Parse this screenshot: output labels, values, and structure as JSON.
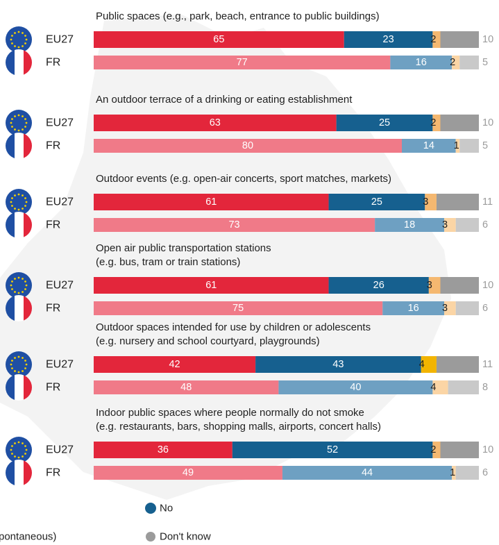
{
  "chart_data": {
    "type": "bar",
    "orientation": "horizontal",
    "stacked": true,
    "xlim": [
      0,
      100
    ],
    "legend": [
      {
        "key": "no",
        "label": "No"
      },
      {
        "key": "dk",
        "label": "Don't know"
      },
      {
        "key": "spont",
        "label": "pontaneous)"
      }
    ],
    "categories": [
      {
        "title": [
          "Public spaces (e.g., park, beach, entrance to public buildings)"
        ],
        "rows": [
          {
            "label": "EU27",
            "flag": "eu-flag-icon",
            "values": [
              65,
              23,
              2,
              10
            ]
          },
          {
            "label": "FR",
            "flag": "fr-flag-icon",
            "values": [
              77,
              16,
              2,
              5
            ]
          }
        ]
      },
      {
        "title": [
          "An outdoor terrace of a drinking or eating establishment"
        ],
        "rows": [
          {
            "label": "EU27",
            "flag": "eu-flag-icon",
            "values": [
              63,
              25,
              2,
              10
            ]
          },
          {
            "label": "FR",
            "flag": "fr-flag-icon",
            "values": [
              80,
              14,
              1,
              5
            ]
          }
        ]
      },
      {
        "title": [
          "Outdoor events (e.g. open-air concerts, sport matches, markets)"
        ],
        "rows": [
          {
            "label": "EU27",
            "flag": "eu-flag-icon",
            "values": [
              61,
              25,
              3,
              11
            ]
          },
          {
            "label": "FR",
            "flag": "fr-flag-icon",
            "values": [
              73,
              18,
              3,
              6
            ]
          }
        ]
      },
      {
        "title": [
          "Open air public transportation stations",
          "(e.g. bus, tram or train stations)"
        ],
        "rows": [
          {
            "label": "EU27",
            "flag": "eu-flag-icon",
            "values": [
              61,
              26,
              3,
              10
            ]
          },
          {
            "label": "FR",
            "flag": "fr-flag-icon",
            "values": [
              75,
              16,
              3,
              6
            ]
          }
        ]
      },
      {
        "title": [
          "Outdoor spaces intended for use by children or adolescents",
          "(e.g. nursery and school courtyard, playgrounds)"
        ],
        "rows": [
          {
            "label": "EU27",
            "flag": "eu-flag-icon",
            "values": [
              42,
              43,
              4,
              11
            ]
          },
          {
            "label": "FR",
            "flag": "fr-flag-icon",
            "values": [
              48,
              40,
              4,
              8
            ]
          }
        ]
      },
      {
        "title": [
          "Indoor public spaces where people normally do not smoke",
          "(e.g. restaurants, bars, shopping malls, airports, concert halls)"
        ],
        "rows": [
          {
            "label": "EU27",
            "flag": "eu-flag-icon",
            "values": [
              36,
              52,
              2,
              10
            ]
          },
          {
            "label": "FR",
            "flag": "fr-flag-icon",
            "values": [
              49,
              44,
              1,
              6
            ]
          }
        ]
      }
    ],
    "colors": {
      "EU27": [
        "#e3263b",
        "#16608f",
        "#f5b870",
        "#9b9b9b"
      ],
      "FR": [
        "#f07a88",
        "#6ea0c2",
        "#fbd5a5",
        "#c9c9c9"
      ],
      "EU27_children_spont": "#f2b400",
      "legend": {
        "no": "#16608f",
        "dk": "#9b9b9b"
      }
    }
  }
}
